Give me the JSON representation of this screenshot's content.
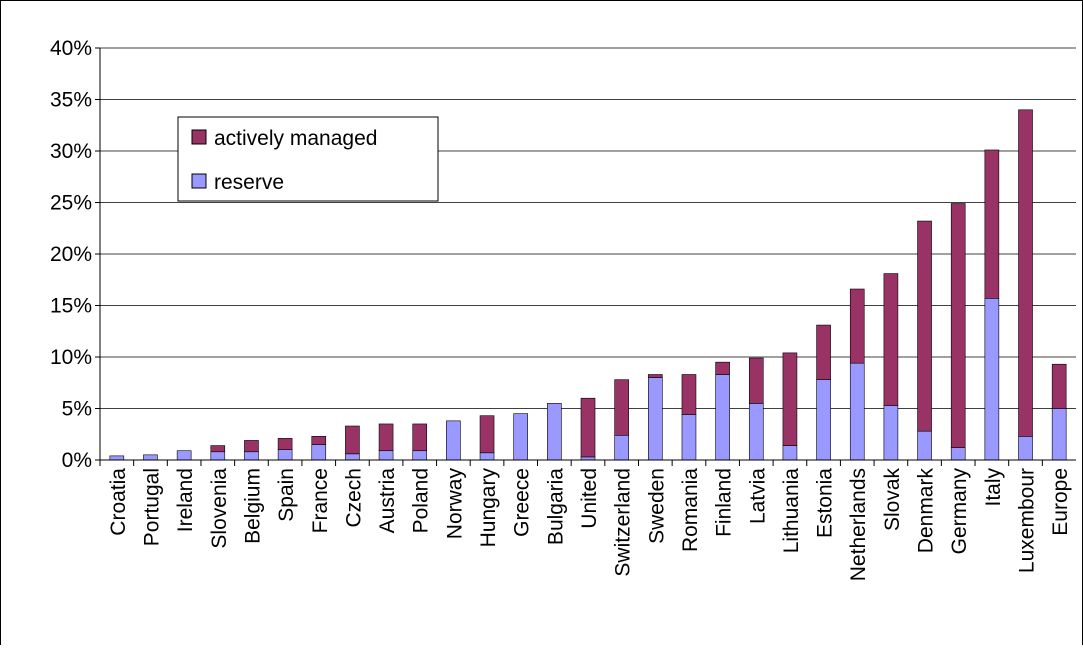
{
  "chart_data": {
    "type": "stacked_bar",
    "categories": [
      "Croatia",
      "Portugal",
      "Ireland",
      "Slovenia",
      "Belgium",
      "Spain",
      "France",
      "Czech",
      "Austria",
      "Poland",
      "Norway",
      "Hungary",
      "Greece",
      "Bulgaria",
      "United",
      "Switzerland",
      "Sweden",
      "Romania",
      "Finland",
      "Latvia",
      "Lithuania",
      "Estonia",
      "Netherlands",
      "Slovak",
      "Denmark",
      "Germany",
      "Italy",
      "Luxembour",
      "Europe"
    ],
    "series": [
      {
        "name": "reserve",
        "color": "#9999ff",
        "values": [
          0.4,
          0.5,
          0.9,
          0.8,
          0.8,
          1.0,
          1.5,
          0.6,
          0.9,
          0.9,
          3.8,
          0.7,
          4.5,
          5.5,
          0.3,
          2.4,
          8.0,
          4.4,
          8.3,
          5.5,
          1.4,
          7.8,
          9.4,
          5.3,
          2.8,
          1.2,
          15.7,
          2.3,
          5.0
        ]
      },
      {
        "name": "actively managed",
        "color": "#993366",
        "values": [
          0,
          0,
          0,
          0.6,
          1.1,
          1.1,
          0.8,
          2.7,
          2.6,
          2.6,
          0,
          3.6,
          0,
          0,
          5.7,
          5.4,
          0.3,
          3.9,
          1.2,
          4.4,
          9.0,
          5.3,
          7.2,
          12.8,
          20.4,
          23.7,
          14.4,
          31.7,
          4.3
        ]
      }
    ],
    "ylim": [
      0,
      40
    ],
    "yticks": [
      {
        "value": 0,
        "label": "0%"
      },
      {
        "value": 5,
        "label": "5%"
      },
      {
        "value": 10,
        "label": "10%"
      },
      {
        "value": 15,
        "label": "15%"
      },
      {
        "value": 20,
        "label": "20%"
      },
      {
        "value": 25,
        "label": "25%"
      },
      {
        "value": 30,
        "label": "30%"
      },
      {
        "value": 35,
        "label": "35%"
      },
      {
        "value": 40,
        "label": "40%"
      }
    ],
    "grid": true
  }
}
